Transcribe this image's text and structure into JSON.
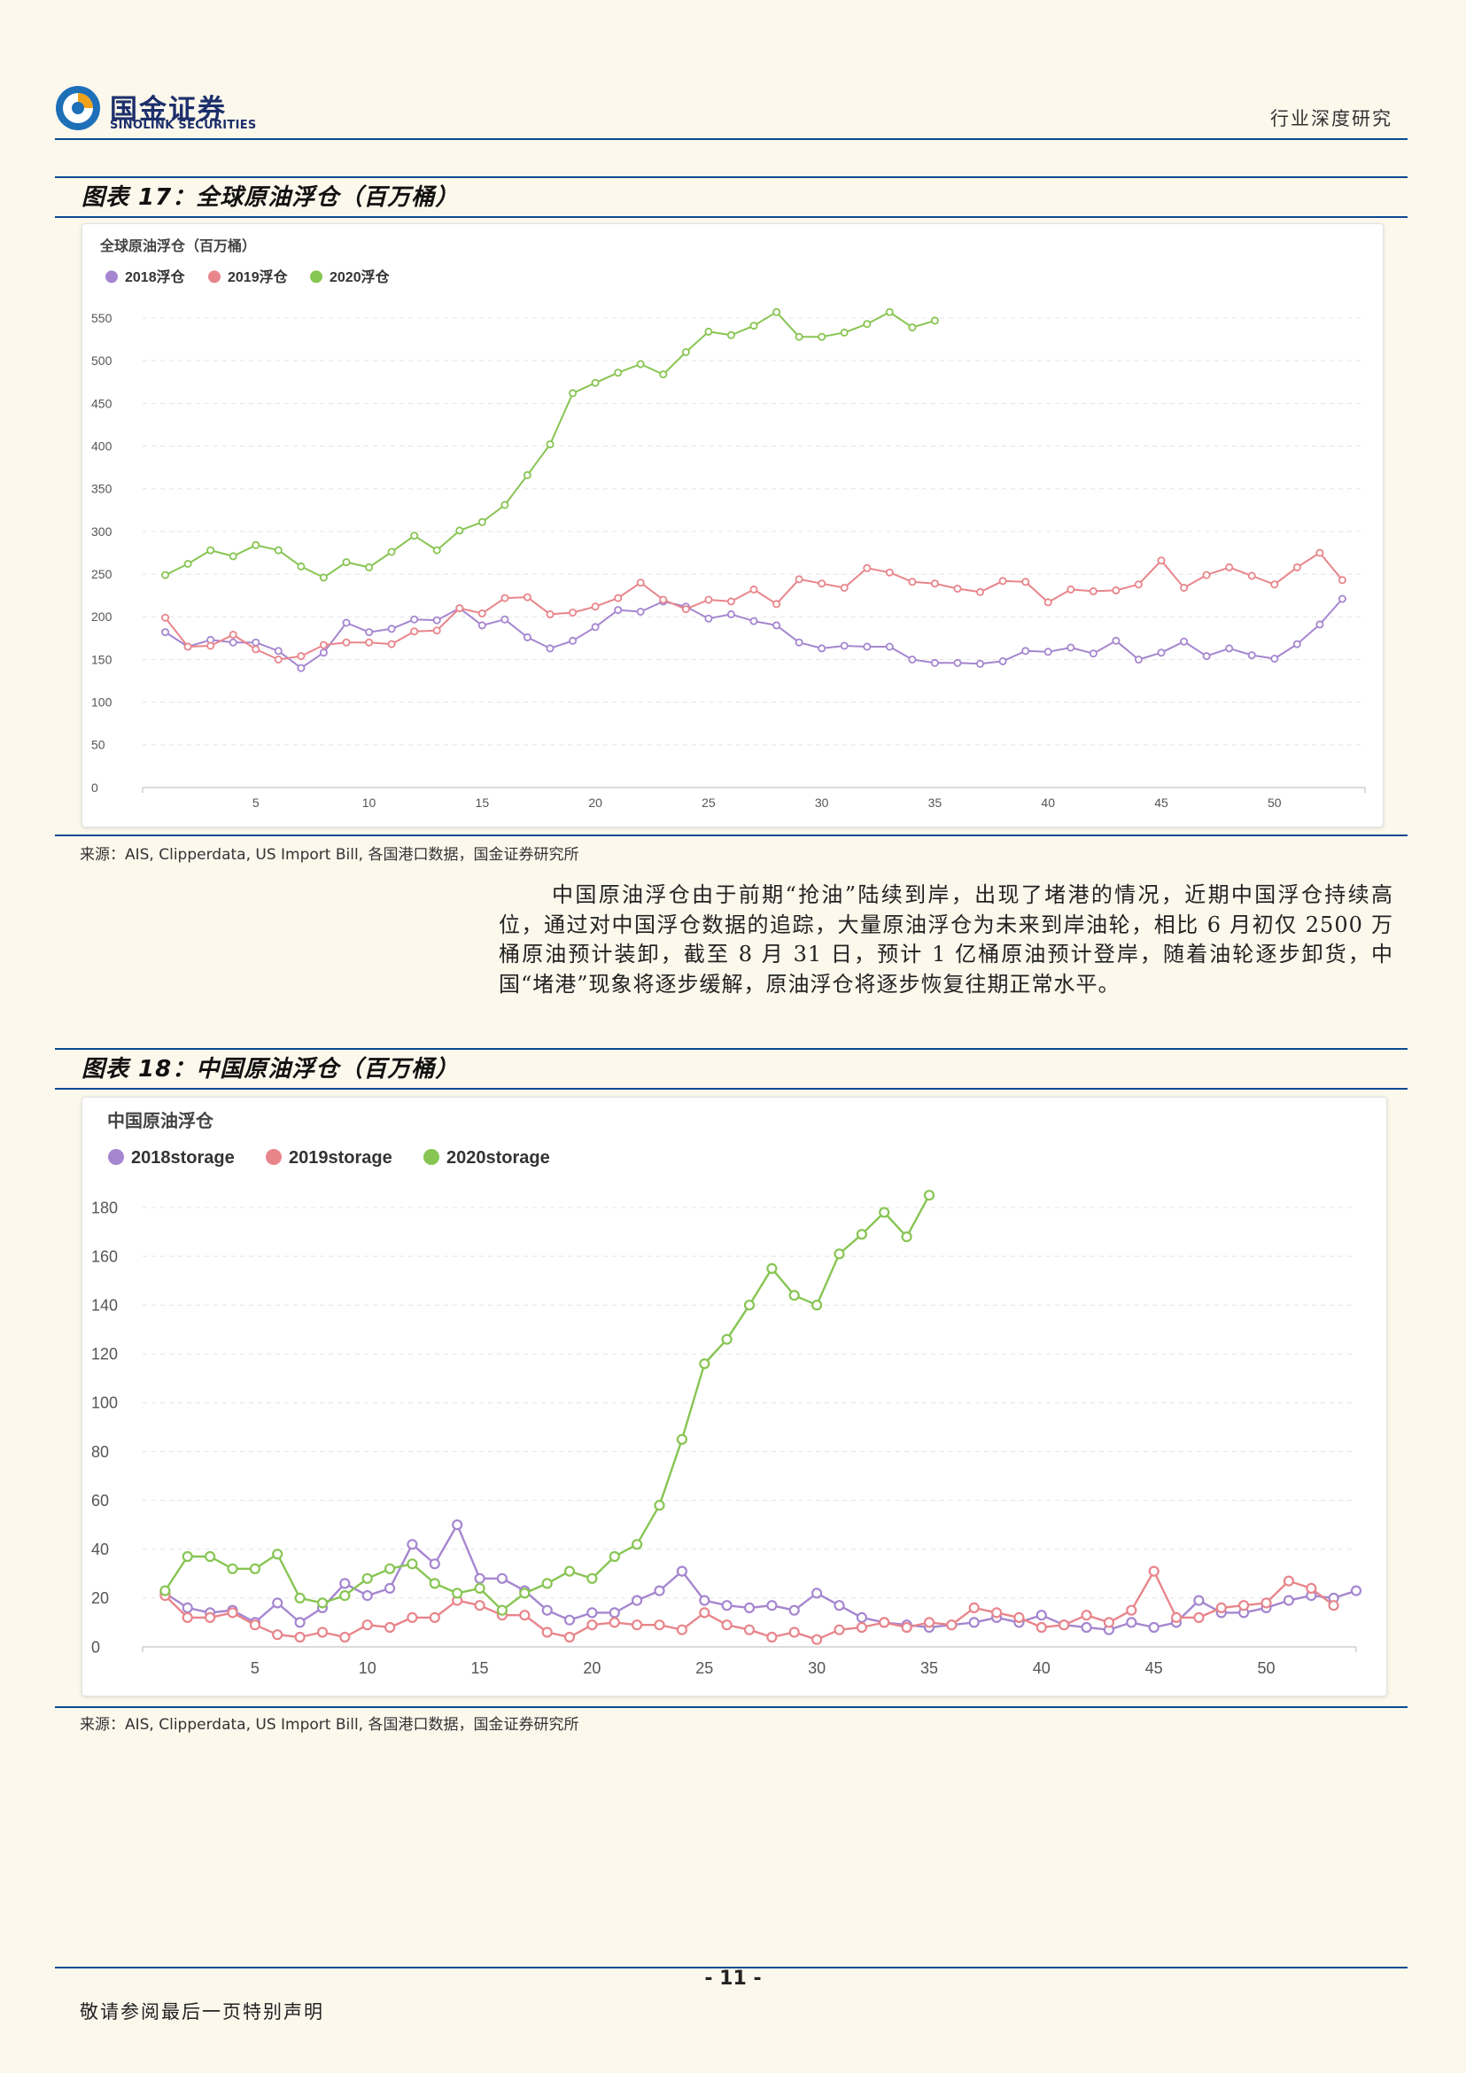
{
  "header": {
    "logo_cn": "国金证券",
    "logo_en": "SINOLINK SECURITIES",
    "report_type": "行业深度研究"
  },
  "figure17": {
    "title": "图表 17：全球原油浮仓（百万桶）",
    "source": "来源：AIS, Clipperdata, US Import Bill, 各国港口数据，国金证券研究所"
  },
  "figure18": {
    "title": "图表 18：中国原油浮仓（百万桶）",
    "source": "来源：AIS, Clipperdata, US Import Bill, 各国港口数据，国金证券研究所"
  },
  "body": {
    "paragraph": "中国原油浮仓由于前期“抢油”陆续到岸，出现了堵港的情况，近期中国浮仓持续高位，通过对中国浮仓数据的追踪，大量原油浮仓为未来到岸油轮，相比 6 月初仅 2500 万桶原油预计装卸，截至 8 月 31 日，预计 1 亿桶原油预计登岸，随着油轮逐步卸货，中国“堵港”现象将逐步缓解，原油浮仓将逐步恢复往期正常水平。"
  },
  "footer": {
    "page_number": "- 11 -",
    "disclaimer": "敬请参阅最后一页特别声明"
  },
  "colors": {
    "accent": "#0b4a91",
    "s2018": "#a586cf",
    "s2019": "#e8858b",
    "s2020": "#87c552"
  },
  "chart_data": [
    {
      "type": "line",
      "title": "全球原油浮仓（百万桶）",
      "xlabel": "",
      "ylabel": "",
      "ylim": [
        0,
        550
      ],
      "yticks": [
        0,
        50,
        100,
        150,
        200,
        250,
        300,
        350,
        400,
        450,
        500,
        550
      ],
      "xticks": [
        5,
        10,
        15,
        20,
        25,
        30,
        35,
        40,
        45,
        50
      ],
      "grid": true,
      "legend_position": "top-left",
      "series": [
        {
          "name": "2018浮仓",
          "color": "#a586cf",
          "x_start": 1,
          "values": [
            182,
            165,
            173,
            170,
            170,
            160,
            140,
            158,
            193,
            182,
            186,
            197,
            196,
            210,
            190,
            197,
            176,
            163,
            172,
            188,
            208,
            206,
            218,
            212,
            198,
            203,
            195,
            190,
            170,
            163,
            166,
            165,
            165,
            150,
            146,
            146,
            145,
            148,
            160,
            159,
            164,
            157,
            172,
            150,
            158,
            171,
            154,
            163,
            155,
            151,
            168,
            191,
            221
          ]
        },
        {
          "name": "2019浮仓",
          "color": "#e8858b",
          "x_start": 1,
          "values": [
            199,
            165,
            166,
            179,
            162,
            150,
            154,
            167,
            170,
            170,
            168,
            183,
            184,
            210,
            204,
            222,
            223,
            203,
            205,
            212,
            222,
            240,
            220,
            209,
            220,
            218,
            232,
            215,
            244,
            239,
            234,
            257,
            252,
            241,
            239,
            233,
            229,
            242,
            241,
            217,
            232,
            230,
            231,
            238,
            266,
            234,
            249,
            258,
            248,
            238,
            258,
            275,
            243
          ]
        },
        {
          "name": "2020浮仓",
          "color": "#87c552",
          "x_start": 1,
          "values": [
            249,
            262,
            278,
            271,
            284,
            278,
            259,
            246,
            264,
            258,
            276,
            295,
            278,
            301,
            311,
            331,
            366,
            402,
            462,
            474,
            486,
            496,
            484,
            510,
            534,
            530,
            541,
            557,
            528,
            528,
            533,
            543,
            557,
            539,
            547
          ]
        }
      ]
    },
    {
      "type": "line",
      "title": "中国原油浮仓",
      "xlabel": "",
      "ylabel": "",
      "ylim": [
        0,
        180
      ],
      "yticks": [
        0,
        20,
        40,
        60,
        80,
        100,
        120,
        140,
        160,
        180
      ],
      "xticks": [
        5,
        10,
        15,
        20,
        25,
        30,
        35,
        40,
        45,
        50
      ],
      "grid": true,
      "legend_position": "top-left",
      "series": [
        {
          "name": "2018storage",
          "color": "#a586cf",
          "x_start": 1,
          "values": [
            22,
            16,
            14,
            15,
            10,
            18,
            10,
            16,
            26,
            21,
            24,
            42,
            34,
            50,
            28,
            28,
            23,
            15,
            11,
            14,
            14,
            19,
            23,
            31,
            19,
            17,
            16,
            17,
            15,
            22,
            17,
            12,
            10,
            9,
            8,
            9,
            10,
            12,
            10,
            13,
            9,
            8,
            7,
            10,
            8,
            10,
            19,
            14,
            14,
            16,
            19,
            21,
            20,
            23
          ]
        },
        {
          "name": "2019storage",
          "color": "#e8858b",
          "x_start": 1,
          "values": [
            21,
            12,
            12,
            14,
            9,
            5,
            4,
            6,
            4,
            9,
            8,
            12,
            12,
            19,
            17,
            13,
            13,
            6,
            4,
            9,
            10,
            9,
            9,
            7,
            14,
            9,
            7,
            4,
            6,
            3,
            7,
            8,
            10,
            8,
            10,
            9,
            16,
            14,
            12,
            8,
            9,
            13,
            10,
            15,
            31,
            12,
            12,
            16,
            17,
            18,
            27,
            24,
            17
          ]
        },
        {
          "name": "2020storage",
          "color": "#87c552",
          "x_start": 1,
          "values": [
            23,
            37,
            37,
            32,
            32,
            38,
            20,
            18,
            21,
            28,
            32,
            34,
            26,
            22,
            24,
            15,
            22,
            26,
            31,
            28,
            37,
            42,
            58,
            85,
            116,
            126,
            140,
            155,
            144,
            140,
            161,
            169,
            178,
            168,
            185
          ]
        }
      ]
    }
  ]
}
